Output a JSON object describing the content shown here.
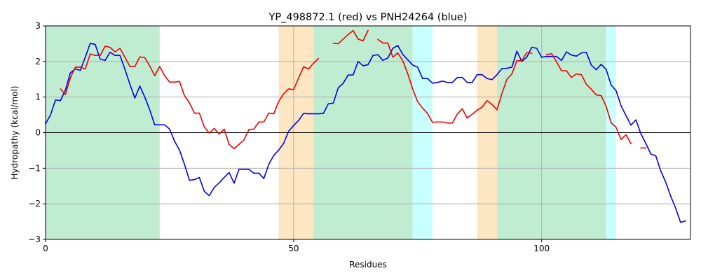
{
  "chart_data": {
    "type": "line",
    "title": "YP_498872.1 (red) vs PNH24264 (blue)",
    "xlabel": "Residues",
    "ylabel": "Hydropathy (kcal/mol)",
    "xlim": [
      0,
      130
    ],
    "ylim": [
      -3,
      3
    ],
    "xticks": [
      0,
      50,
      100
    ],
    "yticks": [
      -3,
      -2,
      -1,
      0,
      1,
      2,
      3
    ],
    "grid": true,
    "zero_line": true,
    "regions": [
      {
        "x0": 0,
        "x1": 23,
        "color": "#c0ecd2"
      },
      {
        "x0": 47,
        "x1": 54,
        "color": "#fde6c2"
      },
      {
        "x0": 54,
        "x1": 74,
        "color": "#c0ecd2"
      },
      {
        "x0": 74,
        "x1": 78,
        "color": "#c8ffff"
      },
      {
        "x0": 87,
        "x1": 91,
        "color": "#fde6c2"
      },
      {
        "x0": 91,
        "x1": 113,
        "color": "#c0ecd2"
      },
      {
        "x0": 113,
        "x1": 115,
        "color": "#c8ffff"
      }
    ],
    "series": [
      {
        "color": "#0000ee",
        "segments": [
          [
            [
              0,
              0.25
            ],
            [
              1,
              0.5
            ],
            [
              2,
              0.92
            ],
            [
              3,
              0.9
            ],
            [
              4,
              1.2
            ],
            [
              5,
              1.68
            ],
            [
              6,
              1.79
            ],
            [
              7,
              1.75
            ],
            [
              8,
              2.12
            ],
            [
              9,
              2.51
            ],
            [
              10,
              2.48
            ],
            [
              11,
              2.07
            ],
            [
              12,
              2.03
            ],
            [
              13,
              2.26
            ],
            [
              14,
              2.17
            ],
            [
              15,
              2.17
            ],
            [
              16,
              1.78
            ],
            [
              17,
              1.36
            ],
            [
              18,
              0.97
            ],
            [
              19,
              1.31
            ],
            [
              20,
              1.0
            ],
            [
              21,
              0.64
            ],
            [
              22,
              0.22
            ],
            [
              23,
              0.22
            ],
            [
              24,
              0.22
            ],
            [
              25,
              0.1
            ],
            [
              26,
              -0.24
            ],
            [
              27,
              -0.49
            ],
            [
              28,
              -0.89
            ],
            [
              29,
              -1.34
            ],
            [
              30,
              -1.32
            ],
            [
              31,
              -1.26
            ],
            [
              32,
              -1.65
            ],
            [
              33,
              -1.77
            ],
            [
              34,
              -1.54
            ],
            [
              35,
              -1.41
            ],
            [
              36,
              -1.26
            ],
            [
              37,
              -1.12
            ],
            [
              38,
              -1.42
            ],
            [
              39,
              -1.03
            ],
            [
              40,
              -1.03
            ],
            [
              41,
              -1.03
            ],
            [
              42,
              -1.14
            ],
            [
              43,
              -1.14
            ],
            [
              44,
              -1.29
            ],
            [
              45,
              -0.89
            ],
            [
              46,
              -0.64
            ],
            [
              47,
              -0.49
            ],
            [
              48,
              -0.3
            ],
            [
              49,
              0.04
            ],
            [
              50,
              0.2
            ],
            [
              51,
              0.34
            ],
            [
              52,
              0.54
            ],
            [
              53,
              0.53
            ],
            [
              54,
              0.53
            ],
            [
              55,
              0.53
            ],
            [
              56,
              0.54
            ],
            [
              57,
              0.81
            ],
            [
              58,
              0.83
            ],
            [
              59,
              1.26
            ],
            [
              60,
              1.39
            ],
            [
              61,
              1.62
            ],
            [
              62,
              1.62
            ],
            [
              63,
              2.0
            ],
            [
              64,
              1.88
            ],
            [
              65,
              1.91
            ],
            [
              66,
              2.17
            ],
            [
              67,
              2.19
            ],
            [
              68,
              2.03
            ],
            [
              69,
              2.1
            ],
            [
              70,
              2.37
            ],
            [
              71,
              2.45
            ],
            [
              72,
              2.2
            ],
            [
              73,
              2.05
            ],
            [
              74,
              1.9
            ],
            [
              75,
              1.84
            ],
            [
              76,
              1.52
            ],
            [
              77,
              1.52
            ],
            [
              78,
              1.39
            ],
            [
              79,
              1.41
            ],
            [
              80,
              1.45
            ],
            [
              81,
              1.41
            ],
            [
              82,
              1.41
            ],
            [
              83,
              1.55
            ],
            [
              84,
              1.55
            ],
            [
              85,
              1.41
            ],
            [
              86,
              1.41
            ],
            [
              87,
              1.63
            ],
            [
              88,
              1.63
            ],
            [
              89,
              1.52
            ],
            [
              90,
              1.49
            ],
            [
              91,
              1.63
            ],
            [
              92,
              1.8
            ],
            [
              93,
              1.81
            ],
            [
              94,
              1.84
            ],
            [
              95,
              2.29
            ],
            [
              96,
              2.0
            ],
            [
              97,
              2.12
            ],
            [
              98,
              2.4
            ],
            [
              99,
              2.37
            ],
            [
              100,
              2.12
            ],
            [
              101,
              2.14
            ],
            [
              102,
              2.14
            ],
            [
              103,
              2.14
            ],
            [
              104,
              2.03
            ],
            [
              105,
              2.27
            ],
            [
              106,
              2.18
            ],
            [
              107,
              2.15
            ],
            [
              108,
              2.24
            ],
            [
              109,
              2.26
            ],
            [
              110,
              1.9
            ],
            [
              111,
              1.77
            ],
            [
              112,
              1.92
            ],
            [
              113,
              1.78
            ],
            [
              114,
              1.34
            ],
            [
              115,
              1.18
            ],
            [
              116,
              0.76
            ],
            [
              117,
              0.48
            ],
            [
              118,
              0.21
            ],
            [
              119,
              0.36
            ],
            [
              120,
              -0.03
            ],
            [
              121,
              -0.3
            ],
            [
              122,
              -0.6
            ],
            [
              123,
              -0.65
            ],
            [
              124,
              -1.07
            ],
            [
              125,
              -1.39
            ],
            [
              126,
              -1.78
            ],
            [
              127,
              -2.12
            ],
            [
              128,
              -2.52
            ],
            [
              129,
              -2.48
            ]
          ]
        ]
      },
      {
        "color": "#ee0000",
        "segments": [
          [
            [
              3,
              1.23
            ],
            [
              4,
              1.07
            ],
            [
              5,
              1.54
            ],
            [
              6,
              1.84
            ],
            [
              7,
              1.84
            ],
            [
              8,
              1.79
            ],
            [
              9,
              2.21
            ],
            [
              10,
              2.17
            ],
            [
              11,
              2.17
            ],
            [
              12,
              2.43
            ],
            [
              13,
              2.4
            ],
            [
              14,
              2.27
            ],
            [
              15,
              2.37
            ],
            [
              16,
              2.12
            ],
            [
              17,
              1.86
            ],
            [
              18,
              1.86
            ],
            [
              19,
              2.13
            ],
            [
              20,
              2.11
            ],
            [
              21,
              1.87
            ],
            [
              22,
              1.6
            ],
            [
              23,
              1.86
            ],
            [
              24,
              1.6
            ],
            [
              25,
              1.42
            ],
            [
              26,
              1.42
            ],
            [
              27,
              1.44
            ],
            [
              28,
              1.04
            ],
            [
              29,
              0.84
            ],
            [
              30,
              0.55
            ],
            [
              31,
              0.55
            ],
            [
              32,
              0.16
            ],
            [
              33,
              -0.01
            ],
            [
              34,
              0.12
            ],
            [
              35,
              -0.04
            ],
            [
              36,
              0.1
            ],
            [
              37,
              -0.33
            ],
            [
              38,
              -0.45
            ],
            [
              39,
              -0.33
            ],
            [
              40,
              -0.2
            ],
            [
              41,
              0.09
            ],
            [
              42,
              0.1
            ],
            [
              43,
              0.3
            ],
            [
              44,
              0.3
            ],
            [
              45,
              0.55
            ],
            [
              46,
              0.53
            ],
            [
              47,
              0.88
            ],
            [
              48,
              1.09
            ],
            [
              49,
              1.23
            ],
            [
              50,
              1.21
            ],
            [
              51,
              1.53
            ],
            [
              52,
              1.85
            ],
            [
              53,
              1.79
            ],
            [
              54,
              1.95
            ],
            [
              55,
              2.08
            ]
          ],
          [
            [
              58,
              2.51
            ],
            [
              59,
              2.5
            ],
            [
              60,
              2.63
            ],
            [
              61,
              2.76
            ],
            [
              62,
              2.87
            ],
            [
              63,
              2.63
            ],
            [
              64,
              2.58
            ],
            [
              65,
              2.87
            ]
          ],
          [
            [
              67,
              2.62
            ],
            [
              68,
              2.52
            ],
            [
              69,
              2.52
            ],
            [
              70,
              2.12
            ],
            [
              71,
              2.24
            ],
            [
              72,
              2.02
            ],
            [
              73,
              1.66
            ],
            [
              74,
              1.23
            ],
            [
              75,
              0.87
            ],
            [
              76,
              0.69
            ],
            [
              77,
              0.54
            ],
            [
              78,
              0.29
            ],
            [
              79,
              0.3
            ],
            [
              80,
              0.3
            ],
            [
              81,
              0.27
            ],
            [
              82,
              0.27
            ],
            [
              83,
              0.52
            ],
            [
              84,
              0.67
            ],
            [
              85,
              0.41
            ],
            [
              86,
              0.52
            ],
            [
              87,
              0.63
            ],
            [
              88,
              0.72
            ],
            [
              89,
              0.9
            ],
            [
              90,
              0.79
            ],
            [
              91,
              0.64
            ],
            [
              92,
              1.1
            ],
            [
              93,
              1.5
            ],
            [
              94,
              1.65
            ],
            [
              95,
              2.02
            ],
            [
              96,
              2.02
            ],
            [
              97,
              2.25
            ],
            [
              98,
              2.23
            ]
          ],
          [
            [
              101,
              2.19
            ],
            [
              102,
              2.22
            ],
            [
              103,
              1.99
            ],
            [
              104,
              1.74
            ],
            [
              105,
              1.74
            ],
            [
              106,
              1.55
            ],
            [
              107,
              1.65
            ],
            [
              108,
              1.63
            ],
            [
              109,
              1.36
            ],
            [
              110,
              1.22
            ],
            [
              111,
              1.06
            ],
            [
              112,
              1.04
            ],
            [
              113,
              0.74
            ],
            [
              114,
              0.28
            ],
            [
              115,
              0.15
            ],
            [
              116,
              -0.19
            ],
            [
              117,
              -0.06
            ],
            [
              118,
              -0.31
            ]
          ],
          [
            [
              120,
              -0.43
            ],
            [
              121,
              -0.43
            ]
          ]
        ]
      }
    ]
  }
}
